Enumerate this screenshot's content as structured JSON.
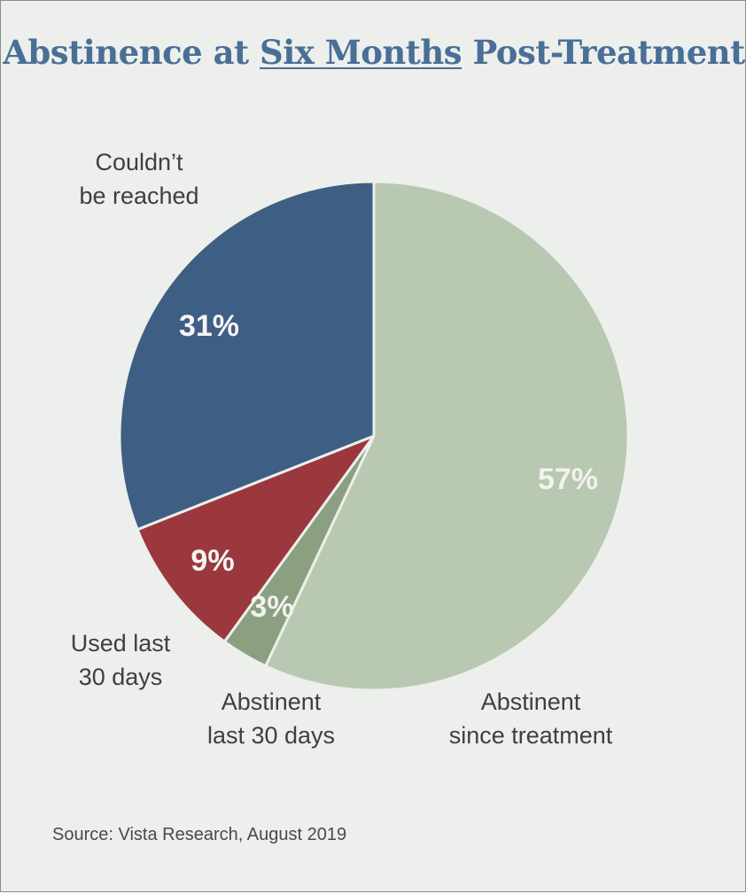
{
  "chart_data": {
    "type": "pie",
    "title_parts": [
      "Abstinence at ",
      "Six Months",
      " Post-Treatment"
    ],
    "slices": [
      {
        "label_lines": [
          "Abstinent",
          "since treatment"
        ],
        "value": 57,
        "value_label": "57%",
        "color": "#b9c8b1",
        "label_color": "#f2f2ee"
      },
      {
        "label_lines": [
          "Abstinent",
          "last 30 days"
        ],
        "value": 3,
        "value_label": "3%",
        "color": "#8b9f81",
        "label_color": "#f2f2ee"
      },
      {
        "label_lines": [
          "Used last",
          "30 days"
        ],
        "value": 9,
        "value_label": "9%",
        "color": "#9b383e",
        "label_color": "#f5f5f5"
      },
      {
        "label_lines": [
          "Couldn’t",
          "be reached"
        ],
        "value": 31,
        "value_label": "31%",
        "color": "#3f5e84",
        "label_color": "#f5f5f5"
      }
    ],
    "start": "12 o'clock",
    "direction": "clockwise",
    "source": "Source: Vista Research, August 2019"
  }
}
